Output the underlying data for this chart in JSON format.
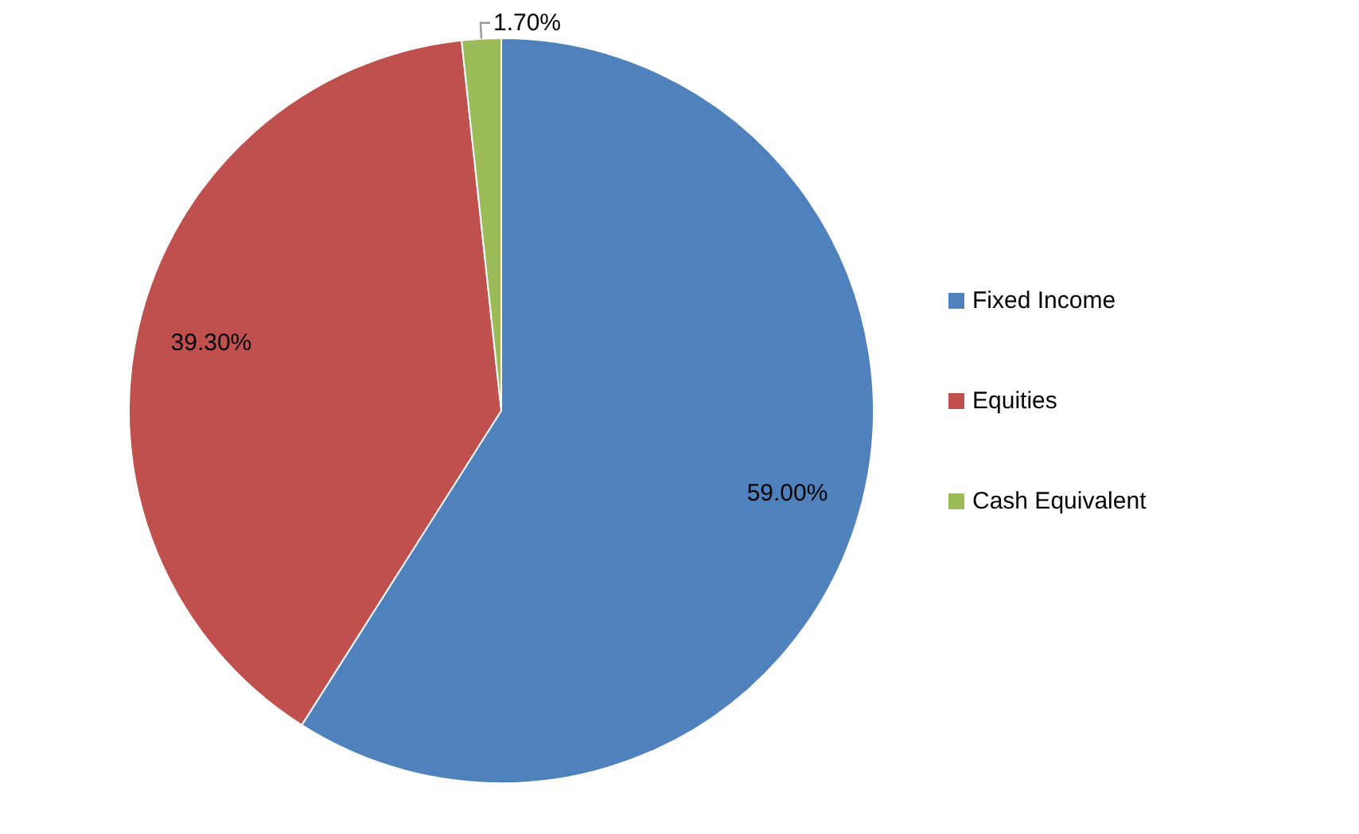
{
  "chart_data": {
    "type": "pie",
    "categories": [
      "Fixed Income",
      "Equities",
      "Cash Equivalent"
    ],
    "values": [
      59.0,
      39.3,
      1.7
    ],
    "colors": [
      "#4f81bd",
      "#c0504d",
      "#9bbb59"
    ],
    "value_labels": [
      "59.00%",
      "39.30%",
      "1.70%"
    ],
    "legend": "right"
  }
}
